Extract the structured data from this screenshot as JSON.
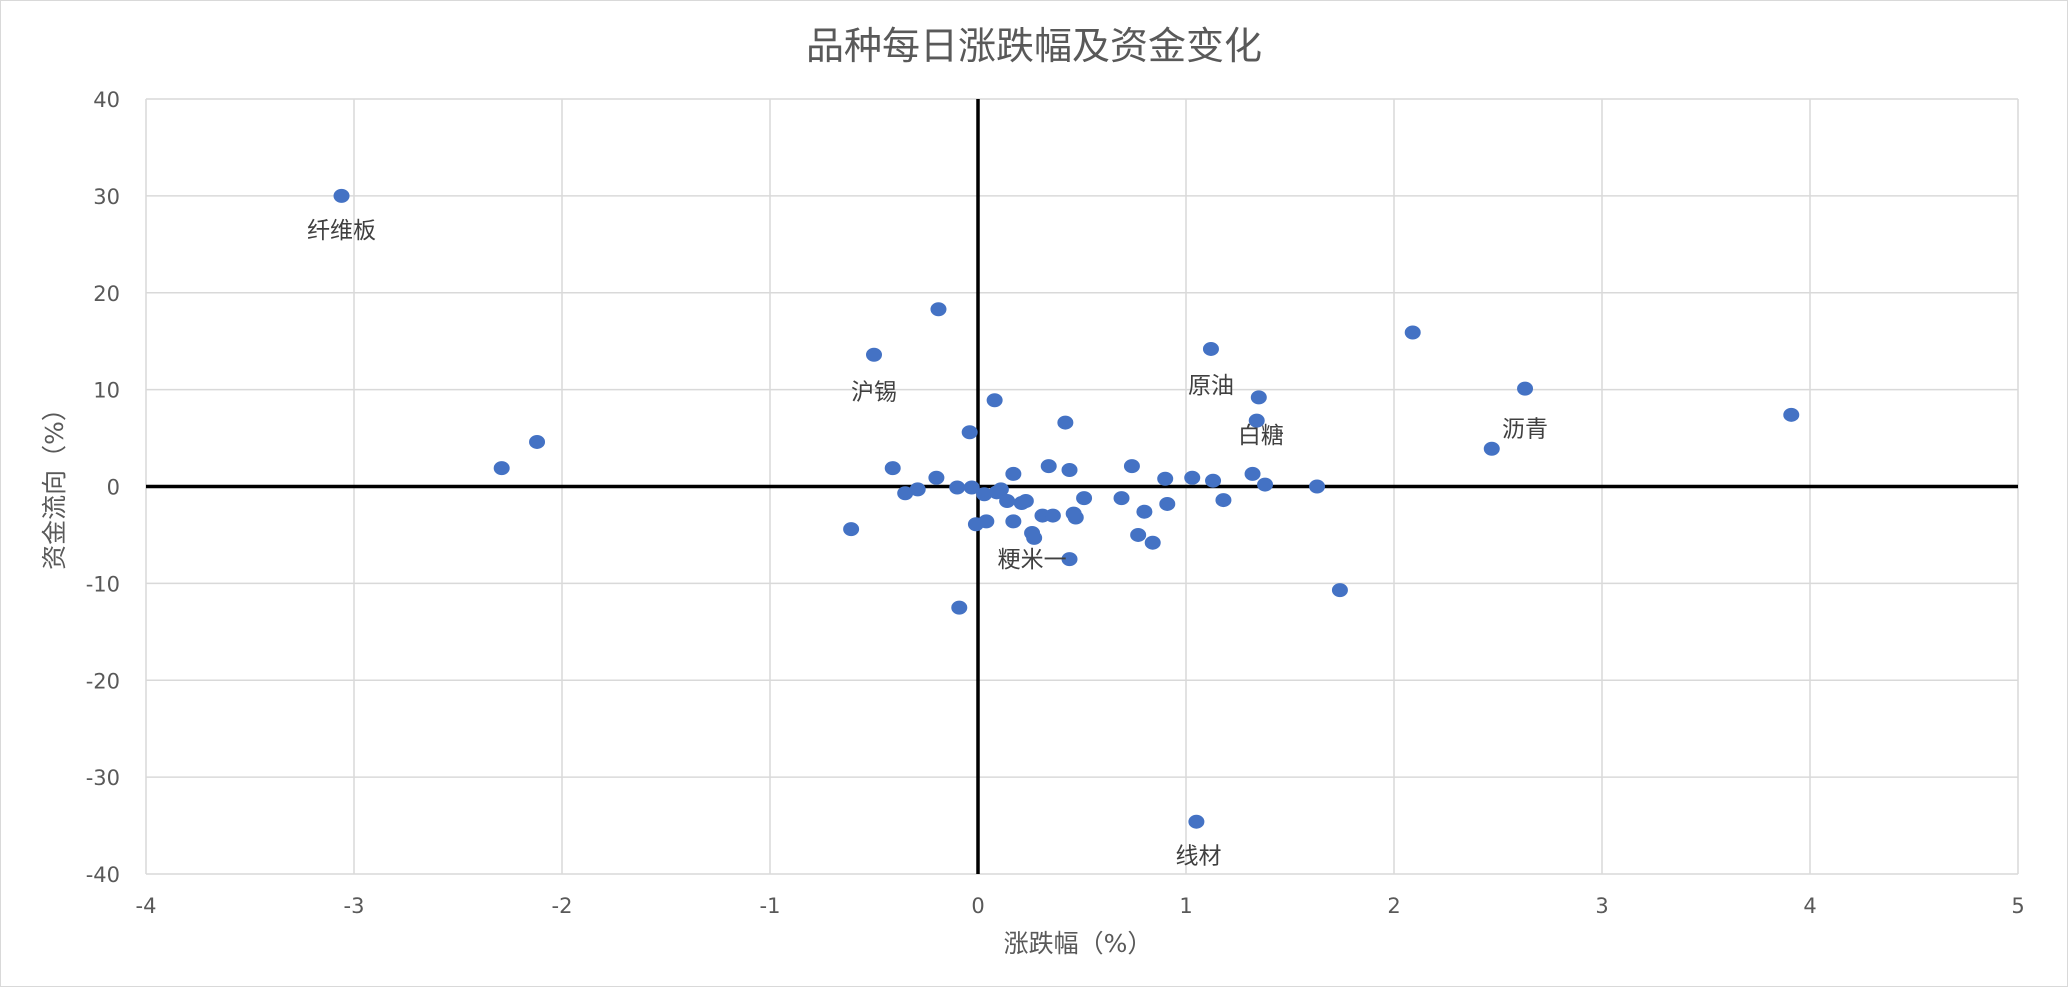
{
  "colors": {
    "point": "#4472c4",
    "gridline": "#d9d9d9",
    "axis": "#000000",
    "text": "#595959",
    "annotation": "#404040"
  },
  "chart_data": {
    "type": "scatter",
    "title": "品种每日涨跌幅及资金变化",
    "xlabel": "涨跌幅（%）",
    "ylabel": "资金流向（%）",
    "xlim": [
      -4,
      5
    ],
    "ylim": [
      -40,
      40
    ],
    "xticks": [
      "-4",
      "-3",
      "-2",
      "-1",
      "0",
      "1",
      "2",
      "3",
      "4",
      "5"
    ],
    "yticks": [
      "40",
      "30",
      "20",
      "10",
      "0",
      "-10",
      "-20",
      "-30",
      "-40"
    ],
    "grid": true,
    "legend": "none",
    "points": [
      {
        "x": -3.06,
        "y": 30.0
      },
      {
        "x": -2.29,
        "y": 1.9
      },
      {
        "x": -2.12,
        "y": 4.6
      },
      {
        "x": -0.61,
        "y": -4.4
      },
      {
        "x": -0.5,
        "y": 13.6
      },
      {
        "x": -0.41,
        "y": 1.9
      },
      {
        "x": -0.35,
        "y": -0.7
      },
      {
        "x": -0.29,
        "y": -0.3
      },
      {
        "x": -0.2,
        "y": 0.9
      },
      {
        "x": -0.19,
        "y": 18.3
      },
      {
        "x": -0.1,
        "y": -0.1
      },
      {
        "x": -0.09,
        "y": -12.5
      },
      {
        "x": -0.04,
        "y": 5.6
      },
      {
        "x": -0.03,
        "y": -0.1
      },
      {
        "x": -0.01,
        "y": -3.9
      },
      {
        "x": 0.03,
        "y": -0.8
      },
      {
        "x": 0.04,
        "y": -3.6
      },
      {
        "x": 0.08,
        "y": 8.9
      },
      {
        "x": 0.09,
        "y": -0.6
      },
      {
        "x": 0.11,
        "y": -0.3
      },
      {
        "x": 0.14,
        "y": -1.5
      },
      {
        "x": 0.17,
        "y": 1.3
      },
      {
        "x": 0.17,
        "y": -3.6
      },
      {
        "x": 0.21,
        "y": -1.7
      },
      {
        "x": 0.23,
        "y": -1.5
      },
      {
        "x": 0.26,
        "y": -4.8
      },
      {
        "x": 0.27,
        "y": -5.3
      },
      {
        "x": 0.31,
        "y": -3.0
      },
      {
        "x": 0.34,
        "y": 2.1
      },
      {
        "x": 0.36,
        "y": -3.0
      },
      {
        "x": 0.42,
        "y": 6.6
      },
      {
        "x": 0.44,
        "y": 1.7
      },
      {
        "x": 0.44,
        "y": -7.5
      },
      {
        "x": 0.46,
        "y": -2.8
      },
      {
        "x": 0.47,
        "y": -3.2
      },
      {
        "x": 0.51,
        "y": -1.2
      },
      {
        "x": 0.69,
        "y": -1.2
      },
      {
        "x": 0.74,
        "y": 2.1
      },
      {
        "x": 0.77,
        "y": -5.0
      },
      {
        "x": 0.8,
        "y": -2.6
      },
      {
        "x": 0.84,
        "y": -5.8
      },
      {
        "x": 0.9,
        "y": 0.8
      },
      {
        "x": 0.91,
        "y": -1.8
      },
      {
        "x": 1.03,
        "y": 0.9
      },
      {
        "x": 1.05,
        "y": -34.6
      },
      {
        "x": 1.12,
        "y": 14.2
      },
      {
        "x": 1.13,
        "y": 0.6
      },
      {
        "x": 1.18,
        "y": -1.4
      },
      {
        "x": 1.32,
        "y": 1.3
      },
      {
        "x": 1.34,
        "y": 6.8
      },
      {
        "x": 1.35,
        "y": 9.2
      },
      {
        "x": 1.38,
        "y": 0.2
      },
      {
        "x": 1.63,
        "y": 0.0
      },
      {
        "x": 1.74,
        "y": -10.7
      },
      {
        "x": 2.09,
        "y": 15.9
      },
      {
        "x": 2.47,
        "y": 3.9
      },
      {
        "x": 2.63,
        "y": 10.1
      },
      {
        "x": 3.91,
        "y": 7.4
      }
    ],
    "annotations": [
      {
        "text": "纤维板",
        "x": -3.06,
        "y": 26.5
      },
      {
        "text": "沪锡",
        "x": -0.5,
        "y": 9.8
      },
      {
        "text": "原油",
        "x": 1.12,
        "y": 10.5
      },
      {
        "text": "白糖",
        "x": 1.36,
        "y": 5.3
      },
      {
        "text": "沥青",
        "x": 2.63,
        "y": 6.0
      },
      {
        "text": "粳米一",
        "x": 0.26,
        "y": -7.5
      },
      {
        "text": "线材",
        "x": 1.06,
        "y": -38.1
      }
    ]
  }
}
